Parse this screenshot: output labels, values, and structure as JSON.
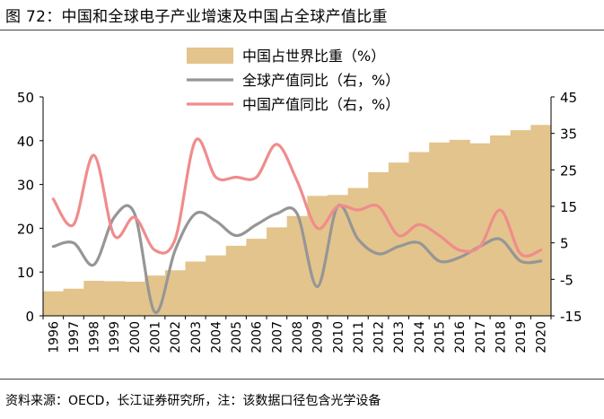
{
  "header": {
    "title": "图 72：中国和全球电子产业增速及中国占全球产值比重"
  },
  "footer": {
    "source": "资料来源：OECD，长江证券研究所，注：该数据口径包含光学设备"
  },
  "chart_data": {
    "type": "bar",
    "categories": [
      "1996",
      "1997",
      "1998",
      "1999",
      "2000",
      "2001",
      "2002",
      "2003",
      "2004",
      "2005",
      "2006",
      "2007",
      "2008",
      "2009",
      "2010",
      "2011",
      "2012",
      "2013",
      "2014",
      "2015",
      "2016",
      "2017",
      "2018",
      "2019",
      "2020"
    ],
    "series": [
      {
        "name": "中国占世界比重（%）",
        "type": "bar",
        "axis": "left",
        "values": [
          5.6,
          6.2,
          8.0,
          7.9,
          7.8,
          9.2,
          10.4,
          12.4,
          13.8,
          16.0,
          17.6,
          20.2,
          22.8,
          27.4,
          27.6,
          29.2,
          32.8,
          35.0,
          37.4,
          39.6,
          40.2,
          39.4,
          41.2,
          42.4,
          43.6
        ],
        "color": "#E3C48C"
      },
      {
        "name": "全球产值同比（右，%）",
        "type": "line",
        "axis": "right",
        "values": [
          4,
          5,
          -1,
          12,
          13,
          -14,
          3,
          13,
          11,
          7,
          10,
          13,
          13,
          -7,
          15,
          6,
          2,
          4,
          5,
          0,
          1,
          4,
          6,
          0,
          0
        ],
        "color": "#969696"
      },
      {
        "name": "中国产值同比（右，%）",
        "type": "line",
        "axis": "right",
        "values": [
          17,
          10,
          29,
          7,
          12,
          3,
          6,
          33,
          23,
          23,
          23,
          32,
          22,
          9,
          15,
          14,
          15,
          7,
          10,
          7,
          3,
          4,
          14,
          2,
          3
        ],
        "color": "#F08C8C"
      }
    ],
    "ylim_left": [
      0,
      50
    ],
    "yticks_left": [
      0,
      10,
      20,
      30,
      40,
      50
    ],
    "ylim_right": [
      -15,
      45
    ],
    "yticks_right": [
      -15,
      -5,
      5,
      15,
      25,
      35,
      45
    ],
    "legend_position": "top-center",
    "grid": false
  }
}
